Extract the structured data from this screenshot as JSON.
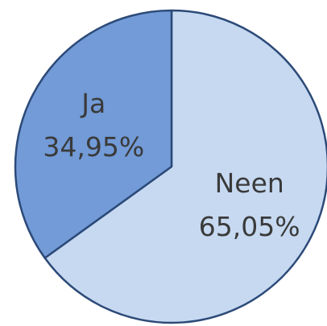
{
  "chart_data": {
    "type": "pie",
    "categories": [
      "Neen",
      "Ja"
    ],
    "values": [
      65.05,
      34.95
    ],
    "value_labels": [
      "65,05%",
      "34,95%"
    ],
    "colors": [
      "#c6d9f1",
      "#729bd7"
    ]
  }
}
